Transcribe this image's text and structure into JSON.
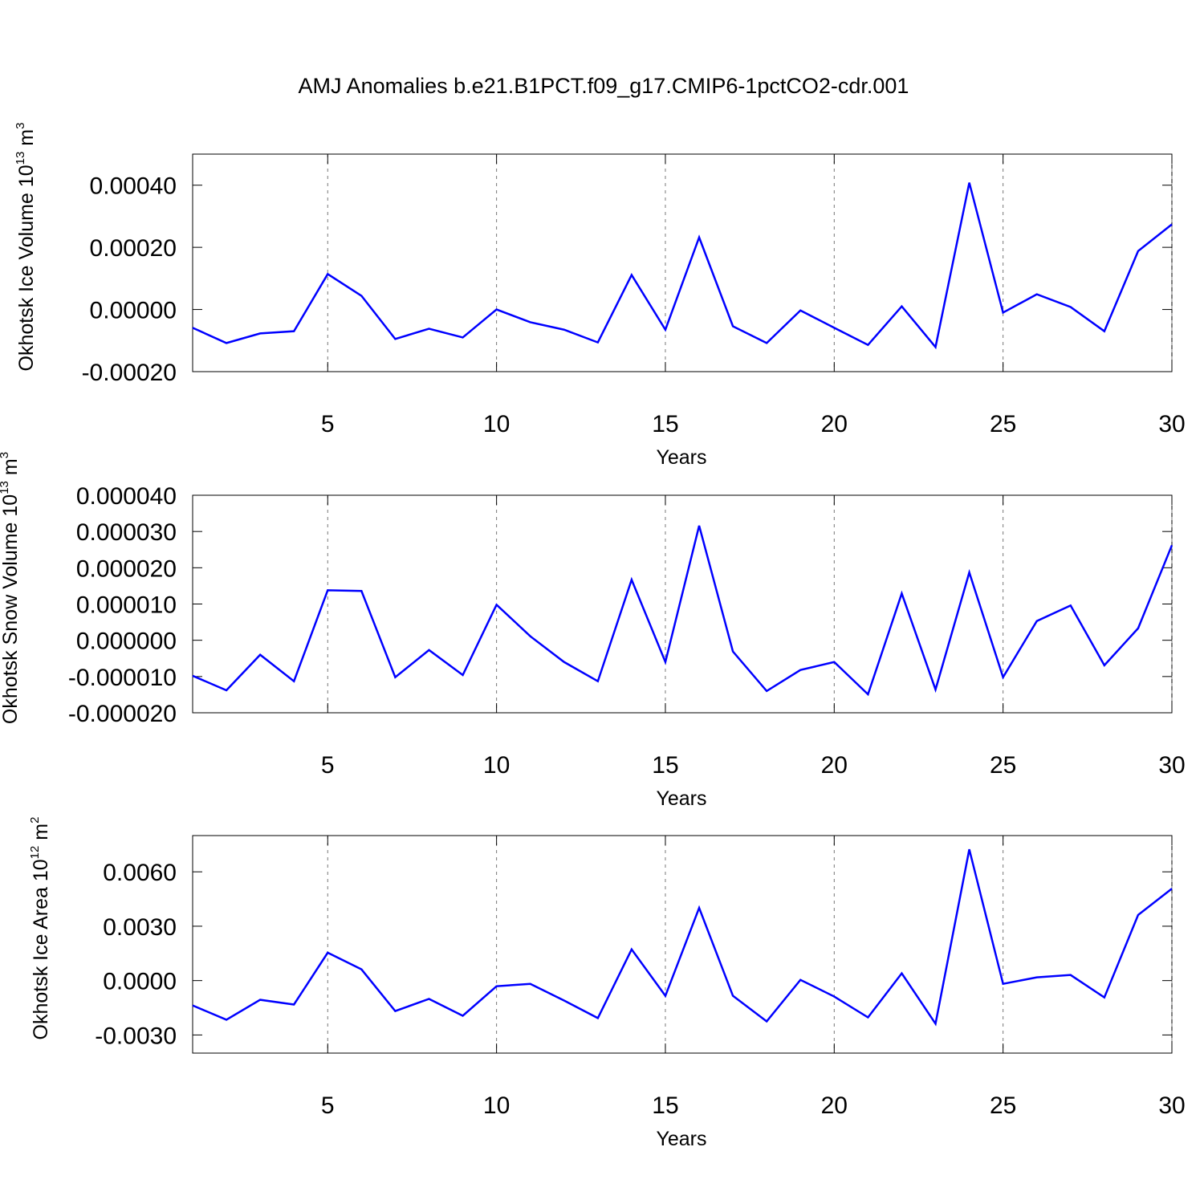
{
  "title": "AMJ Anomalies b.e21.B1PCT.f09_g17.CMIP6-1pctCO2-cdr.001",
  "chart_data": [
    {
      "type": "line",
      "ylabel": [
        "Okhotsk Ice Volume 10",
        "13",
        "m",
        "3"
      ],
      "xlabel": "Years",
      "color": "#0000ff",
      "x": [
        1,
        2,
        3,
        4,
        5,
        6,
        7,
        8,
        9,
        10,
        11,
        12,
        13,
        14,
        15,
        16,
        17,
        18,
        19,
        20,
        21,
        22,
        23,
        24,
        25,
        26,
        27,
        28,
        29,
        30
      ],
      "values": [
        -5.9e-05,
        -0.000108,
        -7.7e-05,
        -7e-05,
        0.000114,
        4.4e-05,
        -9.5e-05,
        -6.2e-05,
        -9e-05,
        0,
        -4.1e-05,
        -6.5e-05,
        -0.000106,
        0.000111,
        -6.5e-05,
        0.000232,
        -5.4e-05,
        -0.000108,
        -3e-06,
        -5.9e-05,
        -0.000114,
        1e-05,
        -0.000121,
        0.000408,
        -1e-05,
        4.9e-05,
        8e-06,
        -7e-05,
        0.000188,
        0.000274
      ],
      "xlim": [
        1,
        30
      ],
      "xticks": [
        5,
        10,
        15,
        20,
        25,
        30
      ],
      "ylim": [
        -0.0002,
        0.0005
      ],
      "yticks": [
        {
          "value": -0.0002,
          "label": "-0.00020"
        },
        {
          "value": 0,
          "label": "0.00000"
        },
        {
          "value": 0.0002,
          "label": "0.00020"
        },
        {
          "value": 0.0004,
          "label": "0.00040"
        }
      ],
      "grid": "x-dashed"
    },
    {
      "type": "line",
      "ylabel": [
        "Okhotsk Snow Volume 10",
        "13",
        "m",
        "3"
      ],
      "xlabel": "Years",
      "color": "#0000ff",
      "x": [
        1,
        2,
        3,
        4,
        5,
        6,
        7,
        8,
        9,
        10,
        11,
        12,
        13,
        14,
        15,
        16,
        17,
        18,
        19,
        20,
        21,
        22,
        23,
        24,
        25,
        26,
        27,
        28,
        29,
        30
      ],
      "values": [
        -9.8e-06,
        -1.38e-05,
        -4e-06,
        -1.13e-05,
        1.38e-05,
        1.36e-05,
        -1.02e-05,
        -2.7e-06,
        -9.6e-06,
        9.8e-06,
        1.1e-06,
        -6e-06,
        -1.13e-05,
        1.67e-05,
        -6e-06,
        3.16e-05,
        -3.1e-06,
        -1.4e-05,
        -8.2e-06,
        -6e-06,
        -1.49e-05,
        1.29e-05,
        -1.36e-05,
        1.87e-05,
        -1.02e-05,
        5.3e-06,
        9.6e-06,
        -6.9e-06,
        3.3e-06,
        2.62e-05
      ],
      "xlim": [
        1,
        30
      ],
      "xticks": [
        5,
        10,
        15,
        20,
        25,
        30
      ],
      "ylim": [
        -2e-05,
        4e-05
      ],
      "yticks": [
        {
          "value": -2e-05,
          "label": "-0.000020"
        },
        {
          "value": -1e-05,
          "label": "-0.000010"
        },
        {
          "value": 0,
          "label": "0.000000"
        },
        {
          "value": 1e-05,
          "label": "0.000010"
        },
        {
          "value": 2e-05,
          "label": "0.000020"
        },
        {
          "value": 3e-05,
          "label": "0.000030"
        },
        {
          "value": 4e-05,
          "label": "0.000040"
        }
      ],
      "grid": "x-dashed"
    },
    {
      "type": "line",
      "ylabel": [
        "Okhotsk Ice Area 10",
        "12",
        "m",
        "2"
      ],
      "xlabel": "Years",
      "color": "#0000ff",
      "x": [
        1,
        2,
        3,
        4,
        5,
        6,
        7,
        8,
        9,
        10,
        11,
        12,
        13,
        14,
        15,
        16,
        17,
        18,
        19,
        20,
        21,
        22,
        23,
        24,
        25,
        26,
        27,
        28,
        29,
        30
      ],
      "values": [
        -0.00137,
        -0.00216,
        -0.00106,
        -0.00132,
        0.00154,
        0.00062,
        -0.00168,
        -0.00101,
        -0.00194,
        -0.00031,
        -0.00018,
        -0.0011,
        -0.00207,
        0.00172,
        -0.00084,
        0.00401,
        -0.00084,
        -0.00225,
        4e-05,
        -0.00088,
        -0.00203,
        0.0004,
        -0.00238,
        0.00724,
        -0.00018,
        0.00018,
        0.00031,
        -0.00093,
        0.00362,
        0.00507
      ],
      "xlim": [
        1,
        30
      ],
      "xticks": [
        5,
        10,
        15,
        20,
        25,
        30
      ],
      "ylim": [
        -0.004,
        0.008
      ],
      "yticks": [
        {
          "value": -0.003,
          "label": "-0.0030"
        },
        {
          "value": 0,
          "label": "0.0000"
        },
        {
          "value": 0.003,
          "label": "0.0030"
        },
        {
          "value": 0.006,
          "label": "0.0060"
        }
      ],
      "grid": "x-dashed"
    }
  ]
}
